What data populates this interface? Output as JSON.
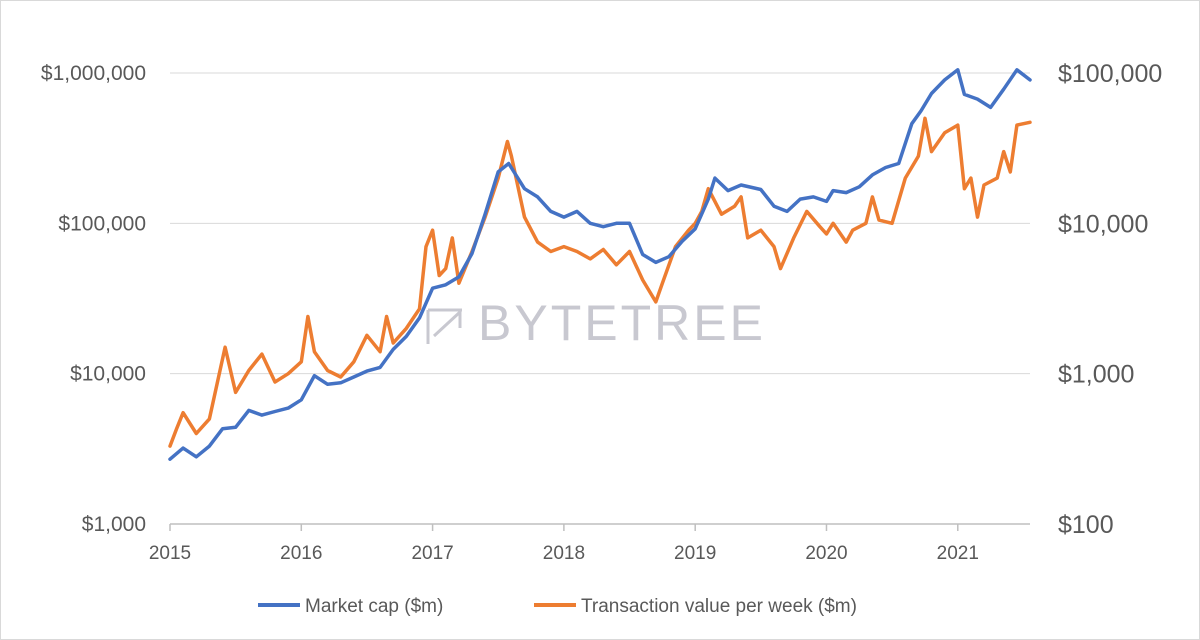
{
  "chart_data": {
    "type": "line",
    "title": "",
    "xlabel": "",
    "ylabel_left": "",
    "ylabel_right": "",
    "x_ticks": [
      "2015",
      "2016",
      "2017",
      "2018",
      "2019",
      "2020",
      "2021"
    ],
    "xlim": [
      2015.0,
      2021.55
    ],
    "y_left": {
      "scale": "log",
      "lim": [
        1000,
        1000000
      ],
      "ticks": [
        1000,
        10000,
        100000,
        1000000
      ],
      "tick_labels": [
        "$1,000",
        "$10,000",
        "$100,000",
        "$1,000,000"
      ]
    },
    "y_right": {
      "scale": "log",
      "lim": [
        100,
        100000
      ],
      "ticks": [
        100,
        1000,
        10000,
        100000
      ],
      "tick_labels": [
        "$100",
        "$1,000",
        "$10,000",
        "$100,000"
      ]
    },
    "grid": "horizontal",
    "legend_position": "bottom",
    "watermark": "BYTETREE",
    "series": [
      {
        "name": "Market cap ($m)",
        "axis": "left",
        "color": "#4472C4",
        "points": [
          [
            2015.0,
            2700
          ],
          [
            2015.1,
            3200
          ],
          [
            2015.2,
            2800
          ],
          [
            2015.3,
            3300
          ],
          [
            2015.4,
            4300
          ],
          [
            2015.5,
            4400
          ],
          [
            2015.6,
            5700
          ],
          [
            2015.7,
            5300
          ],
          [
            2015.8,
            5600
          ],
          [
            2015.9,
            5900
          ],
          [
            2016.0,
            6700
          ],
          [
            2016.1,
            9700
          ],
          [
            2016.2,
            8500
          ],
          [
            2016.3,
            8700
          ],
          [
            2016.4,
            9500
          ],
          [
            2016.5,
            10400
          ],
          [
            2016.6,
            11000
          ],
          [
            2016.7,
            14500
          ],
          [
            2016.8,
            17700
          ],
          [
            2016.9,
            23500
          ],
          [
            2017.0,
            37000
          ],
          [
            2017.1,
            39000
          ],
          [
            2017.2,
            44000
          ],
          [
            2017.3,
            63000
          ],
          [
            2017.4,
            115000
          ],
          [
            2017.5,
            220000
          ],
          [
            2017.58,
            250000
          ],
          [
            2017.7,
            170000
          ],
          [
            2017.8,
            150000
          ],
          [
            2017.9,
            120000
          ],
          [
            2018.0,
            110000
          ],
          [
            2018.1,
            120000
          ],
          [
            2018.2,
            100000
          ],
          [
            2018.3,
            95000
          ],
          [
            2018.4,
            100000
          ],
          [
            2018.5,
            100000
          ],
          [
            2018.6,
            62000
          ],
          [
            2018.7,
            55000
          ],
          [
            2018.8,
            60000
          ],
          [
            2018.9,
            76000
          ],
          [
            2019.0,
            92000
          ],
          [
            2019.1,
            145000
          ],
          [
            2019.15,
            200000
          ],
          [
            2019.25,
            165000
          ],
          [
            2019.35,
            180000
          ],
          [
            2019.5,
            168000
          ],
          [
            2019.6,
            130000
          ],
          [
            2019.7,
            120000
          ],
          [
            2019.8,
            145000
          ],
          [
            2019.9,
            150000
          ],
          [
            2020.0,
            140000
          ],
          [
            2020.05,
            165000
          ],
          [
            2020.15,
            160000
          ],
          [
            2020.25,
            175000
          ],
          [
            2020.35,
            210000
          ],
          [
            2020.45,
            235000
          ],
          [
            2020.55,
            250000
          ],
          [
            2020.65,
            460000
          ],
          [
            2020.72,
            560000
          ],
          [
            2020.8,
            730000
          ],
          [
            2020.9,
            900000
          ],
          [
            2021.0,
            1050000
          ],
          [
            2021.05,
            720000
          ],
          [
            2021.15,
            670000
          ],
          [
            2021.25,
            590000
          ],
          [
            2021.35,
            780000
          ],
          [
            2021.45,
            1050000
          ],
          [
            2021.55,
            900000
          ]
        ]
      },
      {
        "name": "Transaction value per week ($m)",
        "axis": "right",
        "color": "#ED7D31",
        "points": [
          [
            2015.0,
            330
          ],
          [
            2015.05,
            430
          ],
          [
            2015.1,
            550
          ],
          [
            2015.2,
            400
          ],
          [
            2015.3,
            500
          ],
          [
            2015.42,
            1500
          ],
          [
            2015.5,
            750
          ],
          [
            2015.6,
            1050
          ],
          [
            2015.7,
            1350
          ],
          [
            2015.8,
            880
          ],
          [
            2015.9,
            1000
          ],
          [
            2016.0,
            1200
          ],
          [
            2016.05,
            2400
          ],
          [
            2016.1,
            1400
          ],
          [
            2016.2,
            1050
          ],
          [
            2016.3,
            950
          ],
          [
            2016.4,
            1200
          ],
          [
            2016.5,
            1800
          ],
          [
            2016.6,
            1400
          ],
          [
            2016.65,
            2400
          ],
          [
            2016.7,
            1600
          ],
          [
            2016.8,
            2000
          ],
          [
            2016.9,
            2700
          ],
          [
            2016.95,
            7000
          ],
          [
            2017.0,
            9000
          ],
          [
            2017.05,
            4500
          ],
          [
            2017.1,
            5000
          ],
          [
            2017.15,
            8000
          ],
          [
            2017.2,
            4000
          ],
          [
            2017.3,
            6500
          ],
          [
            2017.4,
            11000
          ],
          [
            2017.5,
            20000
          ],
          [
            2017.57,
            35000
          ],
          [
            2017.6,
            28000
          ],
          [
            2017.7,
            11000
          ],
          [
            2017.8,
            7500
          ],
          [
            2017.9,
            6500
          ],
          [
            2018.0,
            7000
          ],
          [
            2018.1,
            6500
          ],
          [
            2018.2,
            5800
          ],
          [
            2018.3,
            6700
          ],
          [
            2018.4,
            5300
          ],
          [
            2018.5,
            6500
          ],
          [
            2018.6,
            4200
          ],
          [
            2018.7,
            3000
          ],
          [
            2018.75,
            4000
          ],
          [
            2018.85,
            7000
          ],
          [
            2018.95,
            9000
          ],
          [
            2019.0,
            10000
          ],
          [
            2019.05,
            12000
          ],
          [
            2019.1,
            17000
          ],
          [
            2019.2,
            11500
          ],
          [
            2019.3,
            13000
          ],
          [
            2019.35,
            15000
          ],
          [
            2019.4,
            8000
          ],
          [
            2019.5,
            9000
          ],
          [
            2019.6,
            7000
          ],
          [
            2019.65,
            5000
          ],
          [
            2019.75,
            8000
          ],
          [
            2019.85,
            12000
          ],
          [
            2019.95,
            9500
          ],
          [
            2020.0,
            8500
          ],
          [
            2020.05,
            10000
          ],
          [
            2020.15,
            7500
          ],
          [
            2020.2,
            9000
          ],
          [
            2020.3,
            10000
          ],
          [
            2020.35,
            15000
          ],
          [
            2020.4,
            10500
          ],
          [
            2020.5,
            10000
          ],
          [
            2020.6,
            20000
          ],
          [
            2020.7,
            28000
          ],
          [
            2020.75,
            50000
          ],
          [
            2020.8,
            30000
          ],
          [
            2020.9,
            40000
          ],
          [
            2021.0,
            45000
          ],
          [
            2021.05,
            17000
          ],
          [
            2021.1,
            20000
          ],
          [
            2021.15,
            11000
          ],
          [
            2021.2,
            18000
          ],
          [
            2021.3,
            20000
          ],
          [
            2021.35,
            30000
          ],
          [
            2021.4,
            22000
          ],
          [
            2021.45,
            45000
          ],
          [
            2021.55,
            47000
          ]
        ]
      }
    ]
  }
}
